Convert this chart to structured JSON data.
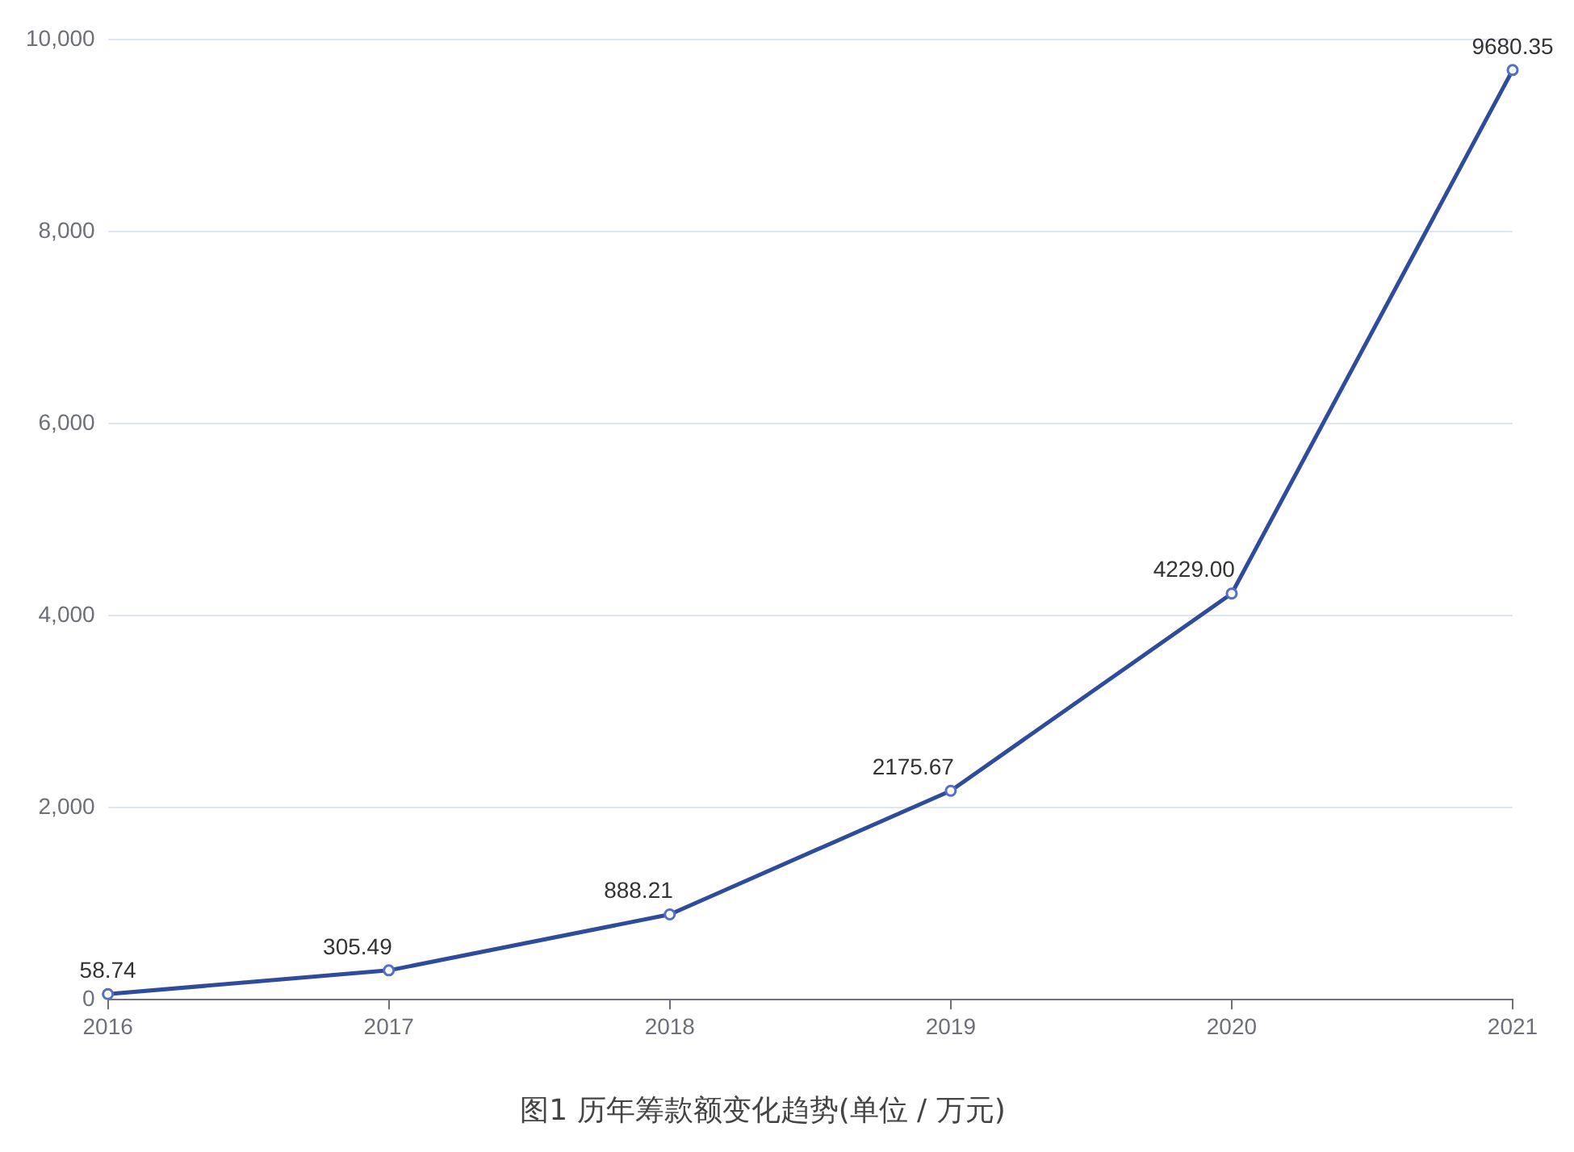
{
  "chart_data": {
    "type": "line",
    "title": "图1 历年筹款额变化趋势(单位 / 万元)",
    "categories": [
      "2016",
      "2017",
      "2018",
      "2019",
      "2020",
      "2021"
    ],
    "series": [
      {
        "color": "#2f4b9b",
        "values": [
          58.74,
          305.49,
          888.21,
          2175.67,
          4229.0,
          9680.35
        ],
        "value_labels": [
          "58.74",
          "305.49",
          "888.21",
          "2175.67",
          "4229.00",
          "9680.35"
        ]
      }
    ],
    "ylim": [
      0,
      10000
    ],
    "yticks": [
      0,
      {
        "value": 2000,
        "label": "2,000"
      },
      {
        "value": 4000,
        "label": "4,000"
      },
      {
        "value": 6000,
        "label": "6,000"
      },
      {
        "value": 8000,
        "label": "8,000"
      },
      {
        "value": 10000,
        "label": "10,000"
      }
    ],
    "grid": "y",
    "legend": false,
    "marker": "circle",
    "line_style": "solid"
  }
}
